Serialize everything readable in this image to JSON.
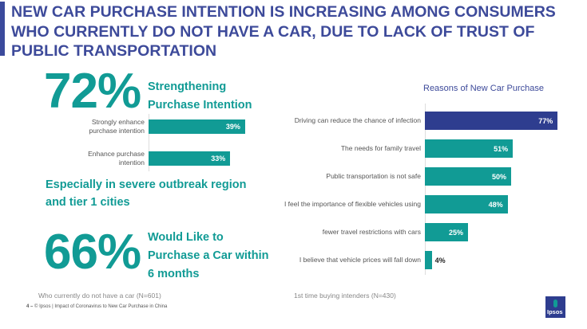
{
  "title": "NEW CAR PURCHASE INTENTION IS INCREASING AMONG CONSUMERS WHO CURRENTLY DO NOT HAVE A CAR, DUE TO LACK OF TRUST OF PUBLIC TRANSPORTATION",
  "colors": {
    "teal": "#119b95",
    "blue": "#3d4a9a",
    "highlight_bar": "#2e3d8f"
  },
  "left": {
    "stat1": "72%",
    "stat1_label_line1": "Strengthening",
    "stat1_label_line2": "Purchase Intention",
    "highlight_line1": "Especially in severe outbreak region",
    "highlight_line2": "and tier 1 cities",
    "stat2": "66%",
    "stat2_label_line1": "Would Like to",
    "stat2_label_line2": "Purchase a Car within",
    "stat2_label_line3": "6 months",
    "note": "Who currently do not have a car (N=601)"
  },
  "chart_data": [
    {
      "type": "bar",
      "orientation": "horizontal",
      "categories": [
        "Strongly enhance purchase intention",
        "Enhance purchase intention"
      ],
      "values": [
        39,
        33
      ],
      "data_labels": [
        "39%",
        "33%"
      ]
    },
    {
      "type": "bar",
      "orientation": "horizontal",
      "title": "Reasons of New Car Purchase",
      "categories": [
        "Driving can reduce the chance of infection",
        "The needs for family travel",
        "Public transportation is not safe",
        "I feel the importance of flexible vehicles using",
        "fewer travel restrictions with cars",
        "I believe that vehicle prices will fall down"
      ],
      "values": [
        77,
        51,
        50,
        48,
        25,
        4
      ],
      "data_labels": [
        "77%",
        "51%",
        "50%",
        "48%",
        "25%",
        "4%"
      ],
      "note": "1st time buying intenders (N=430)"
    }
  ],
  "footer": {
    "page": "4 –",
    "text": "© Ipsos | Impact of Coronavirus to New Car Purchase in China",
    "logo": "Ipsos"
  }
}
